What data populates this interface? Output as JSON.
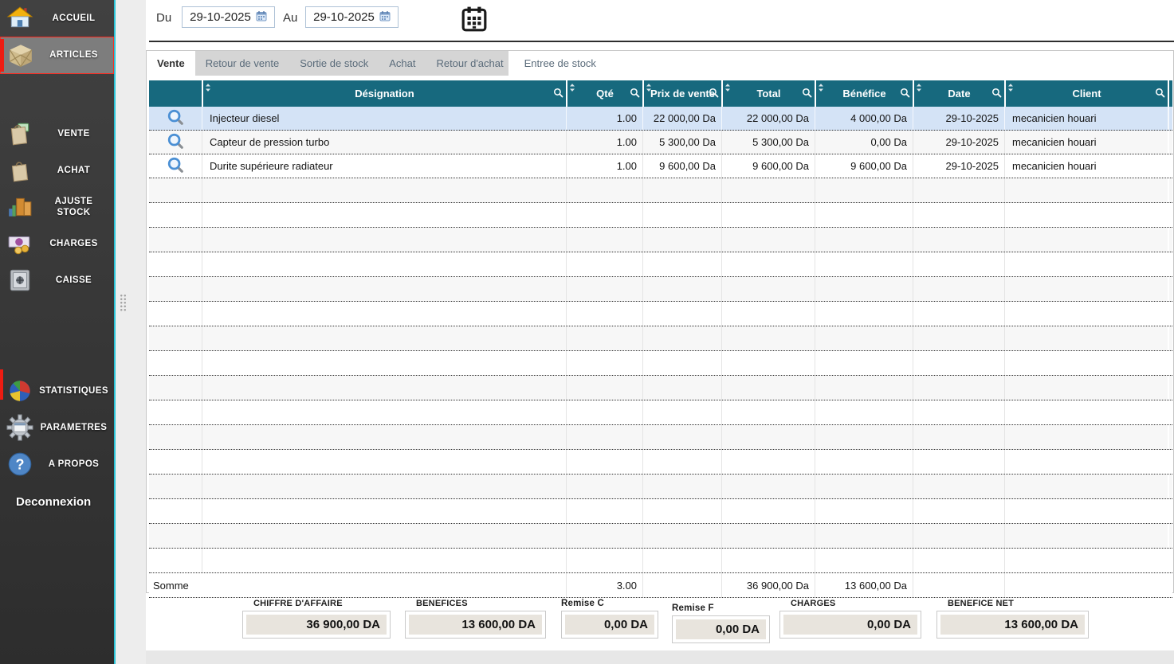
{
  "sidebar": {
    "items": [
      {
        "id": "accueil",
        "label": "ACCUEIL",
        "icon": "home-icon",
        "selected": false
      },
      {
        "id": "articles",
        "label": "ARTICLES",
        "icon": "crate-icon",
        "selected": true
      },
      {
        "id": "vente",
        "label": "VENTE",
        "icon": "sale-bag-icon",
        "selected": false
      },
      {
        "id": "achat",
        "label": "ACHAT",
        "icon": "purchase-bag-icon",
        "selected": false
      },
      {
        "id": "ajuste-stock",
        "label": "AJUSTE STOCK",
        "icon": "stock-boxes-icon",
        "selected": false
      },
      {
        "id": "charges",
        "label": "CHARGES",
        "icon": "banknote-icon",
        "selected": false
      },
      {
        "id": "caisse",
        "label": "CAISSE",
        "icon": "safe-icon",
        "selected": false
      },
      {
        "id": "statistiques",
        "label": "STATISTIQUES",
        "icon": "pie-chart-icon",
        "selected": false
      },
      {
        "id": "parametres",
        "label": "PARAMETRES",
        "icon": "gear-icon",
        "selected": false
      },
      {
        "id": "a-propos",
        "label": "A PROPOS",
        "icon": "question-mark-icon",
        "selected": false
      }
    ],
    "logout_label": "Deconnexion"
  },
  "filters": {
    "from_label": "Du",
    "from_value": "29-10-2025",
    "to_label": "Au",
    "to_value": "29-10-2025",
    "calendar_button_icon": "calendar-icon"
  },
  "tabs": [
    {
      "label": "Vente",
      "active": true
    },
    {
      "label": "Retour de vente",
      "active": false
    },
    {
      "label": "Sortie de stock",
      "active": false
    },
    {
      "label": "Achat",
      "active": false
    },
    {
      "label": "Retour d'achat",
      "active": false
    },
    {
      "label": "Entree de stock",
      "active": false
    }
  ],
  "table": {
    "columns": [
      {
        "label": ""
      },
      {
        "label": "Désignation"
      },
      {
        "label": "Qté"
      },
      {
        "label": "Prix de vente"
      },
      {
        "label": "Total"
      },
      {
        "label": "Bénéfice"
      },
      {
        "label": "Date"
      },
      {
        "label": "Client"
      }
    ],
    "rows": [
      {
        "designation": "Injecteur diesel",
        "qte": "1.00",
        "prix": "22 000,00 Da",
        "total": "22 000,00 Da",
        "benefice": "4 000,00 Da",
        "date": "29-10-2025",
        "client": "mecanicien houari",
        "selected": true
      },
      {
        "designation": "Capteur de pression turbo",
        "qte": "1.00",
        "prix": "5 300,00 Da",
        "total": "5 300,00 Da",
        "benefice": "0,00 Da",
        "date": "29-10-2025",
        "client": "mecanicien houari",
        "selected": false
      },
      {
        "designation": "Durite supérieure radiateur",
        "qte": "1.00",
        "prix": "9 600,00 Da",
        "total": "9 600,00 Da",
        "benefice": "9 600,00 Da",
        "date": "29-10-2025",
        "client": "mecanicien houari",
        "selected": false
      }
    ],
    "sum_row": {
      "label": "Somme",
      "qte": "3.00",
      "prix": "",
      "total": "36 900,00 Da",
      "benefice": "13 600,00 Da",
      "date": "",
      "client": ""
    }
  },
  "summary": [
    {
      "label": "CHIFFRE D'AFFAIRE",
      "value": "36 900,00 DA"
    },
    {
      "label": "BENEFICES",
      "value": "13 600,00 DA"
    },
    {
      "label": "Remise C",
      "value": "0,00 DA"
    },
    {
      "label": "Remise F",
      "value": "0,00 DA"
    },
    {
      "label": "CHARGES",
      "value": "0,00 DA"
    },
    {
      "label": "BENEFICE NET",
      "value": "13 600,00 DA"
    }
  ],
  "colors": {
    "header_teal": "#17697e",
    "selected_row_blue": "#d4e3f6",
    "sidebar_dark": "#363636",
    "accent_cyan": "#2cc5d8",
    "selection_red": "#ee1c12",
    "tab_strip_gray": "#d5d5d5",
    "summary_field_beige": "#e8e4dd"
  }
}
